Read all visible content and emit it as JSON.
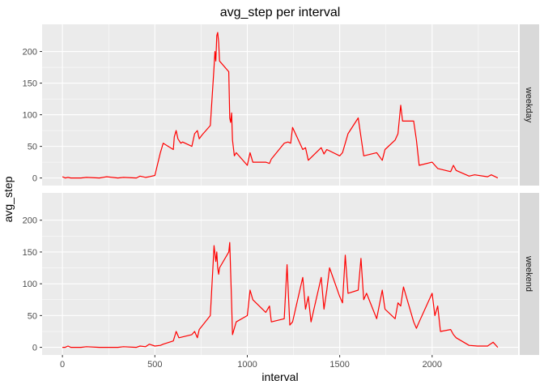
{
  "chart_data": {
    "type": "line",
    "title": "avg_step per interval",
    "xlabel": "interval",
    "ylabel": "avg_step",
    "xlim": [
      -110,
      2465
    ],
    "ylim": [
      -12,
      243
    ],
    "x_ticks": [
      0,
      500,
      1000,
      1500,
      2000
    ],
    "x_tick_labels": [
      "0",
      "500",
      "1000",
      "1500",
      "2000"
    ],
    "y_ticks": [
      0,
      50,
      100,
      150,
      200
    ],
    "y_tick_labels": [
      "0",
      "50",
      "100",
      "150",
      "200"
    ],
    "grid": true,
    "facet": "rows",
    "line_color": "#ff0000",
    "panel_background": "#ebebeb",
    "strip_background": "#d9d9d9",
    "panels": [
      {
        "strip": "weekday",
        "series": [
          {
            "x": [
              0,
              15,
              30,
              45,
              100,
              130,
              200,
              240,
              300,
              330,
              400,
              420,
              450,
              470,
              500,
              530,
              545,
              600,
              605,
              615,
              625,
              640,
              650,
              700,
              715,
              730,
              740,
              755,
              800,
              820,
              825,
              830,
              835,
              840,
              845,
              850,
              900,
              905,
              910,
              915,
              920,
              930,
              940,
              1000,
              1015,
              1030,
              1100,
              1120,
              1130,
              1200,
              1220,
              1235,
              1245,
              1300,
              1315,
              1330,
              1400,
              1415,
              1430,
              1500,
              1515,
              1530,
              1545,
              1600,
              1615,
              1630,
              1700,
              1730,
              1745,
              1800,
              1815,
              1830,
              1840,
              1850,
              1900,
              1915,
              1930,
              2000,
              2030,
              2100,
              2115,
              2130,
              2200,
              2230,
              2300,
              2320,
              2355
            ],
            "y": [
              2,
              0,
              1,
              0,
              0,
              1,
              0,
              2,
              0,
              1,
              0,
              3,
              1,
              2,
              4,
              40,
              55,
              45,
              65,
              75,
              62,
              55,
              57,
              50,
              70,
              75,
              62,
              68,
              83,
              175,
              200,
              185,
              225,
              230,
              215,
              185,
              168,
              95,
              88,
              103,
              60,
              35,
              40,
              20,
              40,
              25,
              25,
              23,
              30,
              55,
              57,
              55,
              80,
              45,
              48,
              28,
              48,
              38,
              45,
              35,
              40,
              55,
              70,
              95,
              65,
              35,
              40,
              28,
              45,
              60,
              70,
              115,
              90,
              90,
              90,
              60,
              20,
              25,
              15,
              10,
              20,
              12,
              3,
              5,
              2,
              5,
              0
            ]
          }
        ]
      },
      {
        "strip": "weekend",
        "series": [
          {
            "x": [
              0,
              15,
              30,
              45,
              100,
              130,
              200,
              240,
              300,
              330,
              400,
              420,
              450,
              470,
              500,
              530,
              545,
              600,
              615,
              630,
              700,
              715,
              730,
              740,
              800,
              815,
              820,
              830,
              835,
              840,
              845,
              850,
              900,
              905,
              915,
              920,
              930,
              940,
              1000,
              1015,
              1030,
              1100,
              1120,
              1130,
              1200,
              1215,
              1230,
              1245,
              1300,
              1315,
              1330,
              1345,
              1400,
              1415,
              1430,
              1445,
              1500,
              1515,
              1530,
              1545,
              1600,
              1615,
              1630,
              1645,
              1700,
              1730,
              1745,
              1800,
              1815,
              1830,
              1845,
              1900,
              1915,
              1930,
              2000,
              2015,
              2030,
              2045,
              2100,
              2115,
              2130,
              2200,
              2245,
              2300,
              2330,
              2355
            ],
            "y": [
              0,
              0,
              2,
              0,
              0,
              1,
              0,
              0,
              0,
              1,
              0,
              2,
              1,
              5,
              2,
              3,
              5,
              10,
              25,
              15,
              20,
              25,
              15,
              28,
              50,
              130,
              160,
              135,
              150,
              125,
              115,
              125,
              150,
              165,
              70,
              20,
              30,
              40,
              50,
              90,
              75,
              55,
              65,
              40,
              45,
              130,
              35,
              40,
              110,
              60,
              80,
              40,
              110,
              60,
              90,
              125,
              80,
              70,
              145,
              85,
              90,
              140,
              75,
              85,
              45,
              90,
              60,
              45,
              70,
              65,
              95,
              40,
              30,
              40,
              85,
              50,
              65,
              25,
              28,
              20,
              15,
              3,
              2,
              2,
              8,
              0
            ]
          }
        ]
      }
    ]
  }
}
